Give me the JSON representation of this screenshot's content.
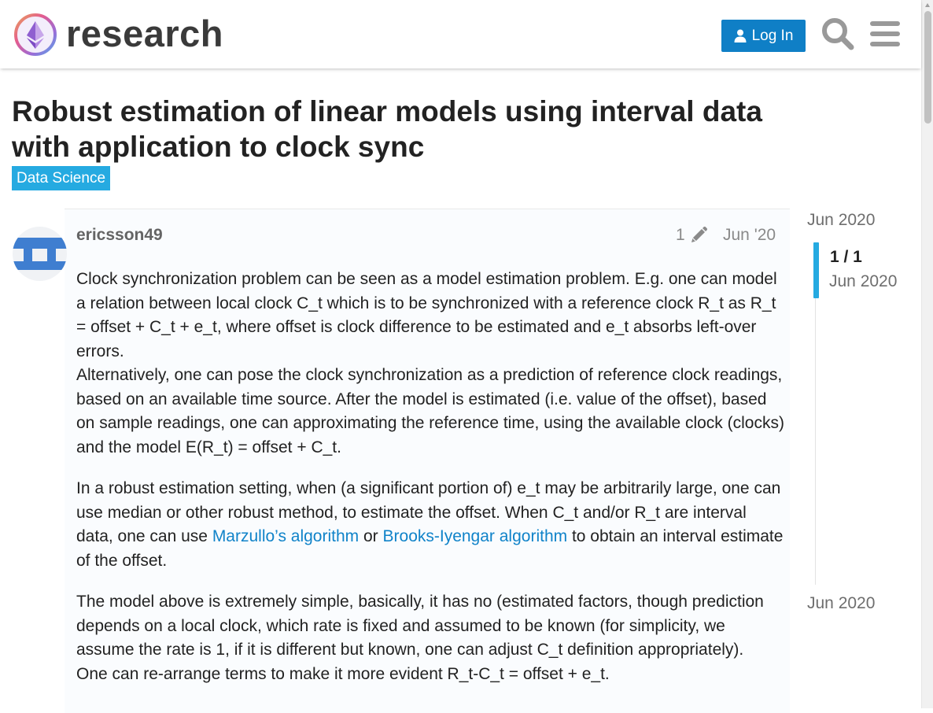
{
  "header": {
    "logo_text": "research",
    "login_label": "Log In",
    "search_icon": "search-icon",
    "menu_icon": "hamburger-menu-icon",
    "accent_color": "#0f7fc6"
  },
  "topic": {
    "title": "Robust estimation of linear models using interval data with application to clock sync",
    "category": "Data Science",
    "category_color": "#25aae1"
  },
  "post": {
    "username": "ericsson49",
    "edit_count": "1",
    "date": "Jun '20",
    "paragraphs": [
      {
        "text1": "Clock synchronization problem can be seen as a model estimation problem. E.g. one can model a relation between local clock C_t which is to be synchronized with a reference clock R_t as R_t = offset + C_t + e_t, where offset is clock difference to be estimated and e_t absorbs left-over errors.",
        "text2": "Alternatively, one can pose the clock synchronization as a prediction of reference clock readings, based on an available time source. After the model is estimated (i.e. value of the offset), based on sample readings, one can approximating the reference time, using the available clock (clocks) and the model E(R_t) = offset + C_t."
      },
      {
        "before": "In a robust estimation setting, when (a significant portion of) e_t may be arbitrarily large, one can use median or other robust method, to estimate the offset. When C_t and/or R_t are interval data, one can use ",
        "link1": "Marzullo’s algorithm",
        "middle": " or ",
        "link2": "Brooks-Iyengar algorithm",
        "after": " to obtain an interval estimate of the offset."
      },
      {
        "text1": "The model above is extremely simple, basically, it has no (estimated factors, though prediction depends on a local clock, which rate is fixed and assumed to be known (for simplicity, we assume the rate is 1, if it is different but known, one can adjust C_t definition appropriately).",
        "text2": "One can re-arrange terms to make it more evident R_t-C_t = offset + e_t."
      }
    ]
  },
  "timeline": {
    "top_date": "Jun 2020",
    "position": "1 / 1",
    "current_date": "Jun 2020",
    "bottom_date": "Jun 2020"
  }
}
